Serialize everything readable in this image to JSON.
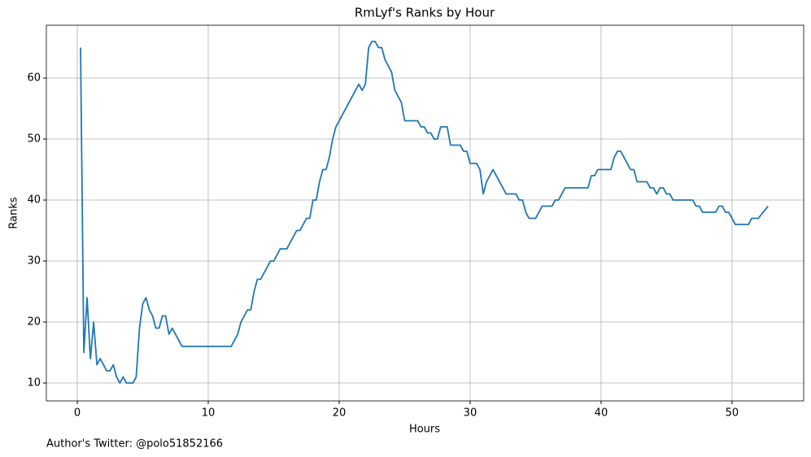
{
  "chart_data": {
    "type": "line",
    "title": "RmLyf's Ranks by Hour",
    "x_label": "Hours",
    "y_label": "Ranks",
    "annotation": "Author's Twitter: @polo51852166",
    "x": [
      0.25,
      0.5,
      0.75,
      1.0,
      1.25,
      1.5,
      1.75,
      2.0,
      2.25,
      2.5,
      2.75,
      3.0,
      3.25,
      3.5,
      3.75,
      4.25,
      4.5,
      4.75,
      5.0,
      5.25,
      5.5,
      5.75,
      6.0,
      6.25,
      6.5,
      6.75,
      7.0,
      7.25,
      7.5,
      7.75,
      8.0,
      11.75,
      12.0,
      12.25,
      12.5,
      12.75,
      13.0,
      13.25,
      13.5,
      13.75,
      14.0,
      14.25,
      14.5,
      14.75,
      15.0,
      15.25,
      15.5,
      16.0,
      16.25,
      16.5,
      16.75,
      17.0,
      17.25,
      17.5,
      17.75,
      18.0,
      18.25,
      18.5,
      18.75,
      19.0,
      19.25,
      19.5,
      19.75,
      21.5,
      21.75,
      22.0,
      22.25,
      22.5,
      22.75,
      23.0,
      23.25,
      23.5,
      23.75,
      24.0,
      24.25,
      24.5,
      24.75,
      25.0,
      26.0,
      26.25,
      26.5,
      26.75,
      27.0,
      27.25,
      27.5,
      27.75,
      28.25,
      28.5,
      29.25,
      29.5,
      29.75,
      30.0,
      30.5,
      30.75,
      31.0,
      31.25,
      31.75,
      32.75,
      33.5,
      33.75,
      34.0,
      34.25,
      34.5,
      35.0,
      35.5,
      36.25,
      36.5,
      36.75,
      37.25,
      39.0,
      39.25,
      39.5,
      39.75,
      40.75,
      41.0,
      41.25,
      41.5,
      42.25,
      42.5,
      42.75,
      43.5,
      43.75,
      44.0,
      44.25,
      44.5,
      44.75,
      45.0,
      45.25,
      45.5,
      47.0,
      47.25,
      47.5,
      47.75,
      48.75,
      49.0,
      49.25,
      49.5,
      49.75,
      50.25,
      51.25,
      51.5,
      52.0,
      52.75
    ],
    "series": [
      {
        "name": "Ranks",
        "color": "#1f77b4",
        "values": [
          65,
          15,
          24,
          14,
          20,
          13,
          14,
          13,
          12,
          12,
          13,
          11,
          10,
          11,
          10,
          10,
          11,
          19,
          23,
          24,
          22,
          21,
          19,
          19,
          21,
          21,
          18,
          19,
          18,
          17,
          16,
          16,
          17,
          18,
          20,
          21,
          22,
          22,
          25,
          27,
          27,
          28,
          29,
          30,
          30,
          31,
          32,
          32,
          33,
          34,
          35,
          35,
          36,
          37,
          37,
          40,
          40,
          43,
          45,
          45,
          47,
          50,
          52,
          59,
          58,
          59,
          65,
          66,
          66,
          65,
          65,
          63,
          62,
          61,
          58,
          57,
          56,
          53,
          53,
          52,
          52,
          51,
          51,
          50,
          50,
          52,
          52,
          49,
          49,
          48,
          48,
          46,
          46,
          45,
          41,
          43,
          45,
          41,
          41,
          40,
          40,
          38,
          37,
          37,
          39,
          39,
          40,
          40,
          42,
          42,
          44,
          44,
          45,
          45,
          47,
          48,
          48,
          45,
          45,
          43,
          43,
          42,
          42,
          41,
          42,
          42,
          41,
          41,
          40,
          40,
          39,
          39,
          38,
          38,
          39,
          39,
          38,
          38,
          36,
          36,
          37,
          37,
          39
        ]
      }
    ],
    "xlim": [
      -2.36,
      55.47
    ],
    "ylim": [
      7.07,
      68.67
    ],
    "xticks": [
      0,
      10,
      20,
      30,
      40,
      50
    ],
    "yticks": [
      10,
      20,
      30,
      40,
      50,
      60
    ],
    "grid": true
  }
}
